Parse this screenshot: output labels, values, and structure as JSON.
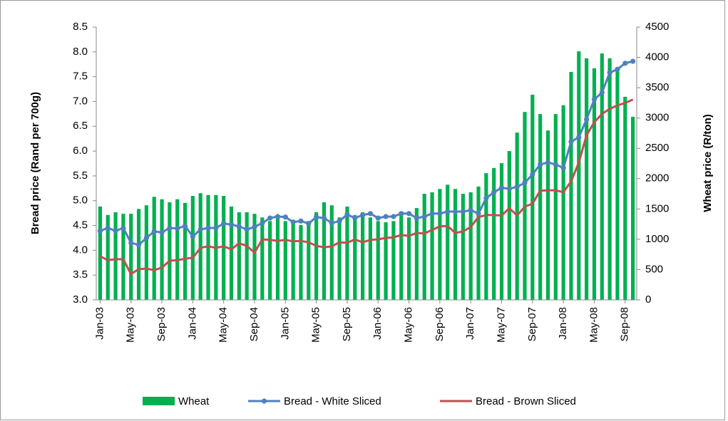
{
  "chart_data": {
    "type": "combo",
    "categories": [
      "Jan-03",
      null,
      null,
      null,
      "May-03",
      null,
      null,
      null,
      "Sep-03",
      null,
      null,
      null,
      "Jan-04",
      null,
      null,
      null,
      "May-04",
      null,
      null,
      null,
      "Sep-04",
      null,
      null,
      null,
      "Jan-05",
      null,
      null,
      null,
      "May-05",
      null,
      null,
      null,
      "Sep-05",
      null,
      null,
      null,
      "Jan-06",
      null,
      null,
      null,
      "May-06",
      null,
      null,
      null,
      "Sep-06",
      null,
      null,
      null,
      "Jan-07",
      null,
      null,
      null,
      "May-07",
      null,
      null,
      null,
      "Sep-07",
      null,
      null,
      null,
      "Jan-08",
      null,
      null,
      null,
      "May-08",
      null,
      null,
      null,
      "Sep-08",
      null
    ],
    "ylabel": "Bread price (Rand per 700g)",
    "y2label": "Wheat price (R/ton)",
    "ylim": [
      3.0,
      8.5
    ],
    "yticks": [
      {
        "value": 3,
        "label": "3.0"
      },
      3.5,
      {
        "value": 4,
        "label": "4.0"
      },
      4.5,
      {
        "value": 5,
        "label": "5.0"
      },
      5.5,
      {
        "value": 6,
        "label": "6.0"
      },
      6.5,
      {
        "value": 7,
        "label": "7.0"
      },
      7.5,
      {
        "value": 8,
        "label": "8.0"
      },
      8.5
    ],
    "y2lim": [
      0,
      4500
    ],
    "y2ticks": [
      0,
      500,
      1000,
      1500,
      2000,
      2500,
      3000,
      3500,
      4000,
      4500
    ],
    "legend": "bottom",
    "series": [
      {
        "name": "Wheat",
        "kind": "bar",
        "axis": "y2",
        "color": "#00b050",
        "values": [
          1540,
          1400,
          1445,
          1420,
          1420,
          1500,
          1560,
          1700,
          1660,
          1610,
          1660,
          1600,
          1715,
          1760,
          1730,
          1730,
          1715,
          1540,
          1445,
          1445,
          1420,
          1360,
          1300,
          1385,
          1300,
          1280,
          1235,
          1300,
          1445,
          1610,
          1560,
          1360,
          1540,
          1400,
          1445,
          1360,
          1300,
          1280,
          1300,
          1420,
          1360,
          1515,
          1750,
          1775,
          1830,
          1900,
          1830,
          1750,
          1775,
          1870,
          2090,
          2175,
          2255,
          2455,
          2760,
          3100,
          3385,
          3065,
          2795,
          3065,
          3210,
          3760,
          4100,
          3985,
          3820,
          4065,
          3985,
          3770,
          3350,
          3020
        ]
      },
      {
        "name": "Bread - White Sliced",
        "kind": "line",
        "marker": true,
        "color": "#4f81bd",
        "values": [
          4.39,
          4.45,
          4.39,
          4.45,
          4.15,
          4.11,
          4.25,
          4.38,
          4.36,
          4.45,
          4.44,
          4.49,
          4.28,
          4.42,
          4.45,
          4.45,
          4.54,
          4.52,
          4.48,
          4.42,
          4.47,
          4.55,
          4.65,
          4.68,
          4.67,
          4.57,
          4.59,
          4.54,
          4.67,
          4.65,
          4.55,
          4.59,
          4.72,
          4.65,
          4.71,
          4.74,
          4.65,
          4.68,
          4.68,
          4.74,
          4.74,
          4.65,
          4.68,
          4.74,
          4.74,
          4.78,
          4.78,
          4.78,
          4.81,
          4.74,
          5.05,
          5.17,
          5.26,
          5.24,
          5.28,
          5.36,
          5.53,
          5.73,
          5.77,
          5.73,
          5.66,
          6.19,
          6.28,
          6.64,
          7.04,
          7.18,
          7.58,
          7.65,
          7.77,
          7.81
        ]
      },
      {
        "name": "Bread - Brown Sliced",
        "kind": "line",
        "marker": false,
        "color": "#c0504d",
        "values": [
          3.88,
          3.8,
          3.82,
          3.82,
          3.52,
          3.62,
          3.63,
          3.6,
          3.65,
          3.79,
          3.8,
          3.83,
          3.85,
          4.05,
          4.08,
          4.05,
          4.08,
          4.02,
          4.14,
          4.09,
          3.95,
          4.22,
          4.21,
          4.19,
          4.21,
          4.18,
          4.19,
          4.16,
          4.09,
          4.06,
          4.08,
          4.16,
          4.15,
          4.22,
          4.16,
          4.21,
          4.22,
          4.25,
          4.26,
          4.31,
          4.29,
          4.35,
          4.34,
          4.41,
          4.48,
          4.49,
          4.35,
          4.38,
          4.47,
          4.67,
          4.71,
          4.71,
          4.7,
          4.85,
          4.7,
          4.88,
          4.94,
          5.2,
          5.21,
          5.21,
          5.17,
          5.39,
          5.77,
          6.32,
          6.58,
          6.75,
          6.85,
          6.92,
          6.97,
          7.04
        ]
      }
    ]
  }
}
